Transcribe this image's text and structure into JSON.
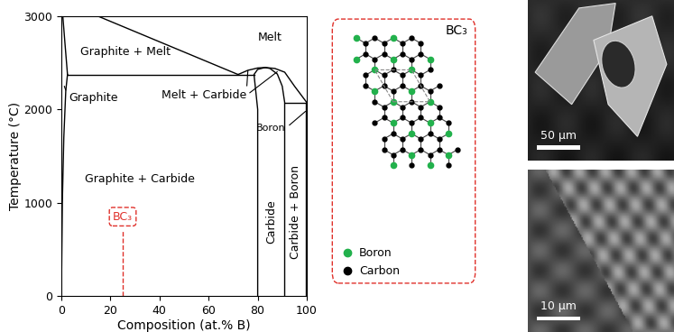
{
  "chart_data": {
    "type": "line",
    "x_label": "Composition (at.% B)",
    "y_label": "Temperature (°C)",
    "xlim": [
      0,
      100
    ],
    "ylim": [
      0,
      3000
    ],
    "xticks": [
      0,
      20,
      40,
      60,
      80,
      100
    ],
    "yticks": [
      0,
      1000,
      2000,
      3000
    ],
    "series": [
      {
        "color": "#000000",
        "x": [
          0,
          0.4,
          1.0,
          1.8,
          2.5
        ],
        "values": [
          0,
          1000,
          1700,
          2200,
          2375
        ]
      },
      {
        "color": "#000000",
        "x": [
          2.5,
          1.5,
          0.6
        ],
        "values": [
          2375,
          2700,
          3000
        ]
      },
      {
        "color": "#000000",
        "x": [
          2.5,
          78.5
        ],
        "values": [
          2375,
          2375
        ]
      },
      {
        "color": "#000000",
        "x": [
          15,
          72
        ],
        "values": [
          3000,
          2375
        ]
      },
      {
        "color": "#000000",
        "x": [
          72,
          76,
          80,
          83,
          87,
          91,
          95,
          100
        ],
        "values": [
          2375,
          2420,
          2445,
          2450,
          2440,
          2400,
          2250,
          2075
        ]
      },
      {
        "color": "#000000",
        "x": [
          80,
          80,
          79,
          78.5,
          80,
          83
        ],
        "values": [
          0,
          2000,
          2250,
          2375,
          2430,
          2450
        ]
      },
      {
        "color": "#000000",
        "x": [
          91,
          91,
          90,
          88,
          85,
          83
        ],
        "values": [
          0,
          2075,
          2250,
          2380,
          2440,
          2450
        ]
      },
      {
        "color": "#000000",
        "x": [
          91,
          99.5
        ],
        "values": [
          2075,
          2075
        ]
      },
      {
        "color": "#000000",
        "x": [
          99.5,
          99.5
        ],
        "values": [
          0,
          2075
        ]
      },
      {
        "color": "#e0312b",
        "line_style": "dashed",
        "x": [
          25,
          25
        ],
        "values": [
          0,
          700
        ]
      }
    ],
    "annotations": [
      {
        "text": "Melt",
        "x": 85,
        "y": 2770
      },
      {
        "text": "Graphite + Melt",
        "x": 26,
        "y": 2620
      },
      {
        "text": "Graphite",
        "x": 13,
        "y": 2120,
        "leaders": [
          [
            1.2,
            2250
          ]
        ]
      },
      {
        "text": "Melt + Carbide",
        "x": 58,
        "y": 2150,
        "leaders": [
          [
            76,
            2415
          ],
          [
            88,
            2405
          ]
        ]
      },
      {
        "text": "Boron",
        "x": 85.5,
        "y": 1800,
        "leaders": [
          [
            99.5,
            1980
          ]
        ]
      },
      {
        "text": "Graphite + Carbide",
        "x": 32,
        "y": 1250
      },
      {
        "text": "Carbide",
        "x": 85.5,
        "y": 800,
        "orientation": "vertical"
      },
      {
        "text": "Carbide + Boron",
        "x": 95.5,
        "y": 900,
        "orientation": "vertical"
      },
      {
        "text": "BC₃",
        "x": 25,
        "y": 850,
        "color": "#e0312b"
      }
    ]
  },
  "lattice": {
    "title": "BC₃",
    "frame_color": "#e0312b",
    "legend": [
      {
        "name": "Boron",
        "color": "#22b14c"
      },
      {
        "name": "Carbon",
        "color": "#000000"
      }
    ]
  },
  "images": [
    {
      "scale_bar": "50 µm"
    },
    {
      "scale_bar": "10 µm"
    }
  ]
}
